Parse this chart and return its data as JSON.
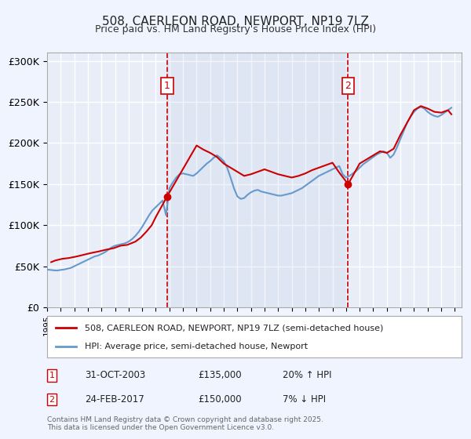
{
  "title": "508, CAERLEON ROAD, NEWPORT, NP19 7LZ",
  "subtitle": "Price paid vs. HM Land Registry's House Price Index (HPI)",
  "ylim": [
    0,
    310000
  ],
  "yticks": [
    0,
    50000,
    100000,
    150000,
    200000,
    250000,
    300000
  ],
  "ytick_labels": [
    "£0",
    "£50K",
    "£100K",
    "£150K",
    "£200K",
    "£250K",
    "£300K"
  ],
  "xlim_start": 1995,
  "xlim_end": 2025.5,
  "background_color": "#f0f4ff",
  "plot_bg_color": "#e8edf8",
  "grid_color": "#ffffff",
  "line1_color": "#cc0000",
  "line2_color": "#6699cc",
  "marker1_label": "1",
  "marker2_label": "2",
  "marker1_date_x": 2003.83,
  "marker2_date_x": 2017.15,
  "vline_color": "#cc0000",
  "vline_style": "--",
  "annotation1_date": "31-OCT-2003",
  "annotation1_price": "£135,000",
  "annotation1_pct": "20% ↑ HPI",
  "annotation2_date": "24-FEB-2017",
  "annotation2_price": "£150,000",
  "annotation2_pct": "7% ↓ HPI",
  "legend_label1": "508, CAERLEON ROAD, NEWPORT, NP19 7LZ (semi-detached house)",
  "legend_label2": "HPI: Average price, semi-detached house, Newport",
  "footer": "Contains HM Land Registry data © Crown copyright and database right 2025.\nThis data is licensed under the Open Government Licence v3.0.",
  "hpi_data": {
    "x": [
      1995.0,
      1995.25,
      1995.5,
      1995.75,
      1996.0,
      1996.25,
      1996.5,
      1996.75,
      1997.0,
      1997.25,
      1997.5,
      1997.75,
      1998.0,
      1998.25,
      1998.5,
      1998.75,
      1999.0,
      1999.25,
      1999.5,
      1999.75,
      2000.0,
      2000.25,
      2000.5,
      2000.75,
      2001.0,
      2001.25,
      2001.5,
      2001.75,
      2002.0,
      2002.25,
      2002.5,
      2002.75,
      2003.0,
      2003.25,
      2003.5,
      2003.75,
      2004.0,
      2004.25,
      2004.5,
      2004.75,
      2005.0,
      2005.25,
      2005.5,
      2005.75,
      2006.0,
      2006.25,
      2006.5,
      2006.75,
      2007.0,
      2007.25,
      2007.5,
      2007.75,
      2008.0,
      2008.25,
      2008.5,
      2008.75,
      2009.0,
      2009.25,
      2009.5,
      2009.75,
      2010.0,
      2010.25,
      2010.5,
      2010.75,
      2011.0,
      2011.25,
      2011.5,
      2011.75,
      2012.0,
      2012.25,
      2012.5,
      2012.75,
      2013.0,
      2013.25,
      2013.5,
      2013.75,
      2014.0,
      2014.25,
      2014.5,
      2014.75,
      2015.0,
      2015.25,
      2015.5,
      2015.75,
      2016.0,
      2016.25,
      2016.5,
      2016.75,
      2017.0,
      2017.25,
      2017.5,
      2017.75,
      2018.0,
      2018.25,
      2018.5,
      2018.75,
      2019.0,
      2019.25,
      2019.5,
      2019.75,
      2020.0,
      2020.25,
      2020.5,
      2020.75,
      2021.0,
      2021.25,
      2021.5,
      2021.75,
      2022.0,
      2022.25,
      2022.5,
      2022.75,
      2023.0,
      2023.25,
      2023.5,
      2023.75,
      2024.0,
      2024.25,
      2024.5,
      2024.75
    ],
    "y": [
      46000,
      45500,
      45000,
      44800,
      45500,
      46000,
      47000,
      48000,
      50000,
      52000,
      54000,
      56000,
      58000,
      60000,
      62000,
      63000,
      65000,
      67000,
      70000,
      73000,
      75000,
      76000,
      77000,
      78000,
      80000,
      83000,
      87000,
      92000,
      98000,
      105000,
      112000,
      118000,
      122000,
      126000,
      130000,
      112000,
      145000,
      152000,
      158000,
      162000,
      163000,
      162000,
      161000,
      160000,
      163000,
      167000,
      171000,
      175000,
      178000,
      182000,
      185000,
      182000,
      178000,
      170000,
      158000,
      145000,
      135000,
      132000,
      133000,
      137000,
      140000,
      142000,
      143000,
      141000,
      140000,
      139000,
      138000,
      137000,
      136000,
      136000,
      137000,
      138000,
      139000,
      141000,
      143000,
      145000,
      148000,
      151000,
      154000,
      157000,
      160000,
      162000,
      164000,
      166000,
      168000,
      170000,
      172000,
      162000,
      158000,
      160000,
      163000,
      166000,
      170000,
      174000,
      177000,
      180000,
      183000,
      186000,
      188000,
      190000,
      188000,
      182000,
      186000,
      195000,
      205000,
      215000,
      225000,
      232000,
      238000,
      242000,
      244000,
      242000,
      238000,
      235000,
      233000,
      232000,
      234000,
      237000,
      240000,
      243000
    ]
  },
  "price_data": {
    "x": [
      1995.3,
      1995.6,
      1996.1,
      1996.6,
      1997.2,
      1997.7,
      1998.2,
      1998.8,
      1999.3,
      1999.9,
      2000.4,
      2000.9,
      2001.5,
      2001.9,
      2002.3,
      2002.7,
      2003.0,
      2003.4,
      2003.83,
      2006.0,
      2006.5,
      2007.0,
      2007.5,
      2008.0,
      2009.0,
      2009.5,
      2010.0,
      2010.5,
      2011.0,
      2012.0,
      2013.0,
      2013.5,
      2014.0,
      2014.5,
      2015.0,
      2015.5,
      2016.0,
      2016.5,
      2017.15,
      2018.0,
      2018.5,
      2019.0,
      2019.5,
      2020.0,
      2020.5,
      2021.0,
      2021.5,
      2022.0,
      2022.5,
      2023.0,
      2023.5,
      2024.0,
      2024.5,
      2024.75
    ],
    "y": [
      55000,
      57000,
      59000,
      60000,
      62000,
      64000,
      66000,
      68000,
      70000,
      72000,
      75000,
      76000,
      80000,
      85000,
      92000,
      100000,
      110000,
      122000,
      135000,
      197000,
      192000,
      188000,
      183000,
      175000,
      165000,
      160000,
      162000,
      165000,
      168000,
      162000,
      158000,
      160000,
      163000,
      167000,
      170000,
      173000,
      176000,
      164000,
      150000,
      175000,
      180000,
      185000,
      190000,
      188000,
      193000,
      210000,
      225000,
      240000,
      245000,
      242000,
      238000,
      237000,
      240000,
      235000
    ]
  }
}
